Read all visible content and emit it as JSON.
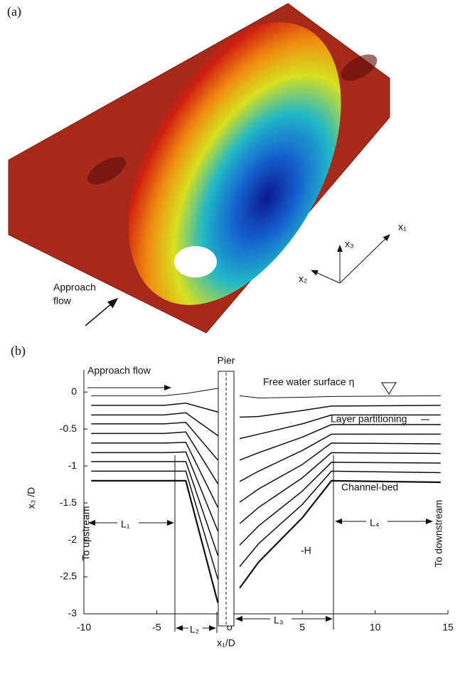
{
  "panel_a": {
    "label": "(a)",
    "approach": [
      "Approach",
      "flow"
    ],
    "axes": [
      "x₁",
      "x₃",
      "x₂"
    ]
  },
  "chart_data": {
    "type": "line",
    "panel_label": "(b)",
    "xlabel": "x₁/D",
    "ylabel": "x₃ /D",
    "xlim": [
      -10,
      15
    ],
    "ylim": [
      -3,
      0.3
    ],
    "xticks": [
      -10,
      -5,
      0,
      5,
      10,
      15
    ],
    "yticks": [
      0,
      -0.5,
      -1,
      -1.5,
      -2,
      -2.5,
      -3
    ],
    "color": "#111111",
    "x": [
      -9.5,
      -4.5,
      -3,
      -0.8,
      0,
      0.7,
      2,
      5,
      7,
      14.5
    ],
    "series": [
      {
        "values": [
          -0.05,
          -0.05,
          -0.02,
          0.05,
          null,
          -0.05,
          -0.08,
          -0.07,
          -0.06,
          -0.05
        ]
      },
      {
        "values": [
          -0.18,
          -0.18,
          -0.15,
          -0.27,
          null,
          -0.34,
          -0.33,
          -0.25,
          -0.19,
          -0.18
        ]
      },
      {
        "values": [
          -0.31,
          -0.31,
          -0.28,
          -0.59,
          null,
          -0.63,
          -0.57,
          -0.43,
          -0.31,
          -0.31
        ]
      },
      {
        "values": [
          -0.43,
          -0.43,
          -0.41,
          -0.92,
          null,
          -0.92,
          -0.82,
          -0.61,
          -0.44,
          -0.44
        ]
      },
      {
        "values": [
          -0.56,
          -0.56,
          -0.54,
          -1.24,
          null,
          -1.21,
          -1.07,
          -0.79,
          -0.57,
          -0.57
        ]
      },
      {
        "values": [
          -0.69,
          -0.69,
          -0.68,
          -1.56,
          null,
          -1.49,
          -1.31,
          -0.98,
          -0.69,
          -0.7
        ]
      },
      {
        "values": [
          -0.82,
          -0.82,
          -0.81,
          -1.88,
          null,
          -1.78,
          -1.56,
          -1.16,
          -0.82,
          -0.83
        ]
      },
      {
        "values": [
          -0.94,
          -0.94,
          -0.94,
          -2.21,
          null,
          -2.07,
          -1.81,
          -1.34,
          -0.95,
          -0.96
        ]
      },
      {
        "values": [
          -1.07,
          -1.07,
          -1.07,
          -2.53,
          null,
          -2.36,
          -2.05,
          -1.52,
          -1.07,
          -1.09
        ]
      },
      {
        "values": [
          -1.2,
          -1.2,
          -1.2,
          -2.85,
          null,
          -2.65,
          -2.3,
          -1.7,
          -1.2,
          -1.22
        ]
      }
    ],
    "annotations": {
      "approach": "Approach flow",
      "pier": "Pier",
      "surface": "Free water surface η",
      "layers": "Layer partitioning",
      "bed": "Channel-bed",
      "depth": "-H",
      "upstream": "To upstream",
      "downstream": "To downstream",
      "L1": "L₁",
      "L2": "L₂",
      "L3": "L₃",
      "L4": "L₄"
    }
  }
}
